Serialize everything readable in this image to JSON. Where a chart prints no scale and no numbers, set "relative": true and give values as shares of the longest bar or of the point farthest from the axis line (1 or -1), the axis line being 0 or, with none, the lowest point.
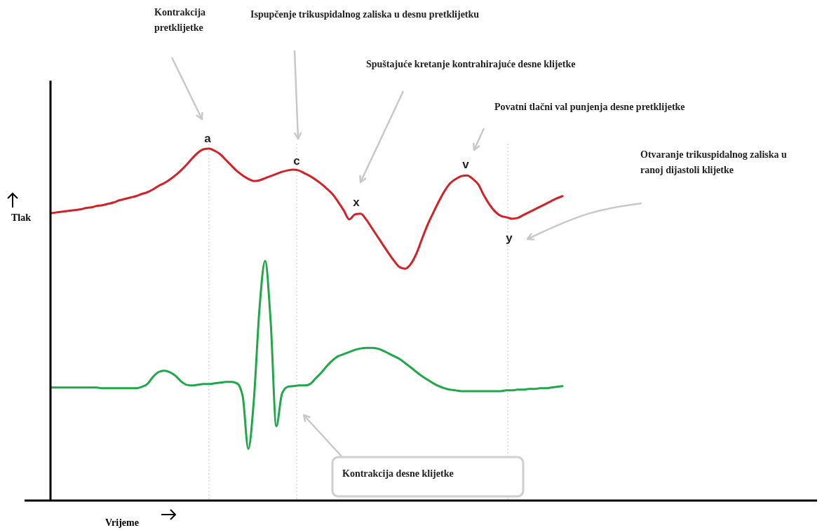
{
  "chart_data": {
    "type": "line",
    "relative": true,
    "xlabel": "Vrijeme",
    "ylabel": "Tlak",
    "marker": "none",
    "line_style": "solid",
    "grid": false,
    "categories": [
      null,
      null,
      null,
      null,
      null,
      null,
      null,
      null,
      null,
      null,
      null,
      null,
      null,
      null,
      null,
      null,
      null,
      null,
      null,
      null,
      null,
      null,
      null,
      null,
      null,
      null,
      null,
      null,
      null,
      null,
      null,
      null,
      null,
      null,
      null,
      null,
      null,
      null,
      null,
      null,
      null,
      null,
      null,
      null,
      null,
      null,
      null,
      null,
      null,
      null,
      null,
      null,
      null,
      null,
      null,
      null,
      null,
      null,
      null,
      null,
      null,
      null,
      null,
      null,
      null,
      null,
      null,
      null,
      null,
      null,
      null,
      null,
      null,
      null,
      null,
      null,
      null,
      null,
      null,
      null,
      null,
      null,
      null,
      null,
      null,
      null,
      null,
      null,
      null,
      null,
      null,
      null
    ],
    "series": [
      {
        "color": "#d42027",
        "values": [
          0.817,
          0.819,
          0.821,
          0.823,
          0.825,
          0.827,
          0.831,
          0.833,
          0.837,
          0.839,
          0.843,
          0.847,
          0.853,
          0.857,
          0.861,
          0.865,
          0.871,
          0.876,
          0.884,
          0.894,
          0.902,
          0.912,
          0.924,
          0.938,
          0.954,
          0.972,
          0.988,
          0.998,
          1,
          0.994,
          0.984,
          0.968,
          0.952,
          0.936,
          0.924,
          0.914,
          0.908,
          0.91,
          0.916,
          0.922,
          0.928,
          0.934,
          0.938,
          0.94,
          0.938,
          0.93,
          0.922,
          0.912,
          0.9,
          0.886,
          0.871,
          0.849,
          0.825,
          0.799,
          0.813,
          0.815,
          0.799,
          0.775,
          0.751,
          0.727,
          0.703,
          0.681,
          0.663,
          0.659,
          0.673,
          0.703,
          0.745,
          0.785,
          0.819,
          0.851,
          0.88,
          0.902,
          0.914,
          0.922,
          0.924,
          0.914,
          0.898,
          0.867,
          0.841,
          0.821,
          0.809,
          0.805,
          0.801,
          0.803,
          0.811,
          0.819,
          0.827,
          0.835,
          0.843,
          0.851,
          0.859,
          0.865
        ]
      },
      {
        "color": "#1fa84a",
        "values": [
          0.321,
          0.321,
          0.321,
          0.321,
          0.321,
          0.321,
          0.321,
          0.321,
          0.321,
          0.319,
          0.319,
          0.319,
          0.319,
          0.319,
          0.319,
          0.319,
          0.323,
          0.331,
          0.351,
          0.365,
          0.369,
          0.365,
          0.355,
          0.339,
          0.329,
          0.327,
          0.329,
          0.331,
          0.331,
          0.333,
          0.335,
          0.337,
          0.337,
          0.333,
          0.297,
          0.147,
          0.287,
          0.546,
          0.681,
          0.506,
          0.211,
          0.303,
          0.323,
          0.325,
          0.327,
          0.327,
          0.331,
          0.347,
          0.363,
          0.382,
          0.398,
          0.41,
          0.416,
          0.422,
          0.428,
          0.432,
          0.434,
          0.434,
          0.432,
          0.426,
          0.418,
          0.41,
          0.402,
          0.39,
          0.378,
          0.365,
          0.353,
          0.343,
          0.333,
          0.325,
          0.319,
          0.315,
          0.313,
          0.311,
          0.311,
          0.311,
          0.311,
          0.311,
          0.311,
          0.311,
          0.311,
          0.313,
          0.313,
          0.315,
          0.315,
          0.317,
          0.317,
          0.319,
          0.319,
          0.321,
          0.323,
          0.325
        ]
      }
    ],
    "annotations": [
      "Kontrakcija pretklijetke",
      "Ispupčenje trikuspidalnog zaliska u desnu pretklijetku",
      "Spuštajuće kretanje kontrahirajuće desne klijetke",
      "Povatni tlačni val punjenja desne pretklijetke",
      "Otvaranje trikuspidalnog zaliska u ranoj dijastoli klijetke",
      "Kontrakcija desne klijetke",
      "a",
      "c",
      "x",
      "v",
      "y"
    ]
  }
}
